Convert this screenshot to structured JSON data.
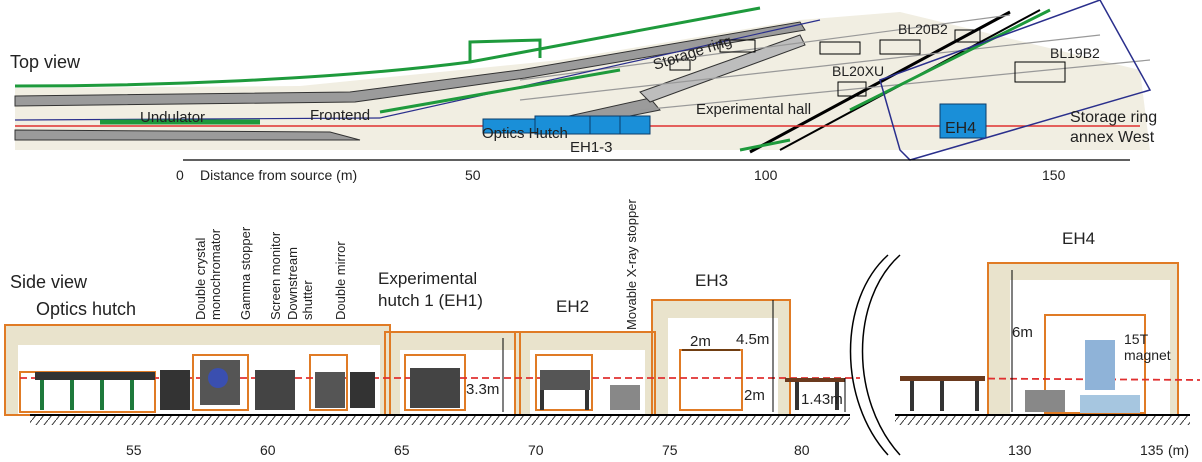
{
  "top_view": {
    "title": "Top view",
    "labels": {
      "storage_ring": "Storage ring",
      "bl20b2": "BL20B2",
      "bl19b2": "BL19B2",
      "bl20xu": "BL20XU",
      "undulator": "Undulator",
      "frontend": "Frontend",
      "experimental_hall": "Experimental hall",
      "storage_ring_annex": "Storage ring",
      "storage_ring_annex_2": "annex West",
      "optics_hutch": "Optics Hutch",
      "eh1_3": "EH1-3",
      "eh4": "EH4"
    },
    "axis": {
      "label": "Distance from source (m)",
      "ticks": [
        "0",
        "50",
        "100",
        "150"
      ]
    }
  },
  "side_view": {
    "title": "Side view",
    "labels": {
      "optics_hutch": "Optics hutch",
      "exp_hutch_1": "Experimental",
      "exp_hutch_1b": "hutch 1 (EH1)",
      "eh2": "EH2",
      "eh3": "EH3",
      "eh4": "EH4",
      "dim_3_3": "3.3m",
      "dim_2m_w": "2m",
      "dim_4_5": "4.5m",
      "dim_2m_h": "2m",
      "dim_1_43": "1.43m",
      "dim_6m": "6m",
      "magnet_1": "15T",
      "magnet_2": "magnet"
    },
    "vertical_labels": [
      "Double crystal",
      "monochromator",
      "Gamma stopper",
      "Screen monitor",
      "Downstream",
      "shutter",
      "Double mirror",
      "Movable X-ray stopper"
    ],
    "axis": {
      "ticks": [
        "55",
        "60",
        "65",
        "70",
        "75",
        "80",
        "130",
        "135"
      ],
      "unit": "(m)"
    }
  }
}
